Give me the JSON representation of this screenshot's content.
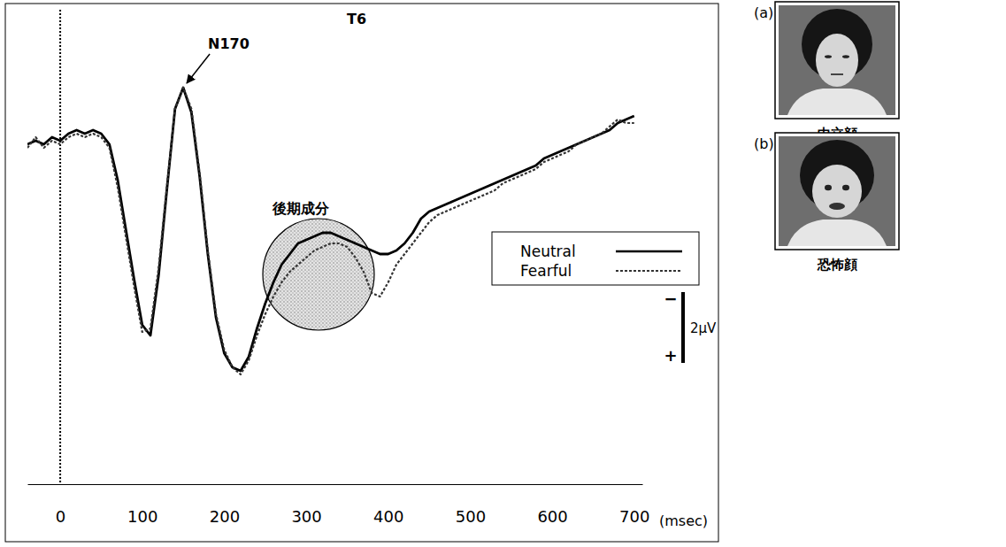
{
  "chart_data": {
    "type": "line",
    "title": "T6",
    "x_label": "(msec)",
    "x": [
      -40,
      -30,
      -20,
      -10,
      0,
      10,
      20,
      30,
      40,
      50,
      60,
      70,
      80,
      90,
      100,
      110,
      120,
      130,
      140,
      150,
      160,
      170,
      180,
      190,
      200,
      210,
      220,
      230,
      240,
      250,
      260,
      270,
      280,
      290,
      300,
      310,
      320,
      330,
      340,
      350,
      360,
      370,
      380,
      390,
      400,
      410,
      420,
      430,
      440,
      450,
      460,
      470,
      480,
      490,
      500,
      510,
      520,
      530,
      540,
      550,
      560,
      570,
      580,
      590,
      600,
      610,
      620,
      630,
      640,
      650,
      660,
      670,
      680,
      690,
      700
    ],
    "series": [
      {
        "name": "Neutral",
        "color": "#000000",
        "line_style": "solid",
        "values": [
          0.2,
          0.1,
          0.2,
          0.0,
          0.1,
          -0.1,
          -0.2,
          -0.1,
          -0.2,
          -0.1,
          0.2,
          1.2,
          2.6,
          4.0,
          5.3,
          5.6,
          3.9,
          1.5,
          -0.8,
          -1.4,
          -0.7,
          1.1,
          3.3,
          5.1,
          6.1,
          6.5,
          6.6,
          6.2,
          5.4,
          4.7,
          4.1,
          3.6,
          3.3,
          3.0,
          2.9,
          2.8,
          2.7,
          2.7,
          2.8,
          2.9,
          3.0,
          3.1,
          3.2,
          3.3,
          3.3,
          3.2,
          3.0,
          2.7,
          2.3,
          2.1,
          2.0,
          1.9,
          1.8,
          1.7,
          1.6,
          1.5,
          1.4,
          1.3,
          1.2,
          1.1,
          1.0,
          0.9,
          0.8,
          0.6,
          0.5,
          0.4,
          0.3,
          0.2,
          0.1,
          0.0,
          -0.1,
          -0.2,
          -0.4,
          -0.5,
          -0.6
        ]
      },
      {
        "name": "Fearful",
        "color": "#333333",
        "line_style": "dashed",
        "values": [
          0.3,
          0.0,
          0.3,
          0.1,
          0.2,
          0.0,
          -0.1,
          0.0,
          -0.1,
          0.0,
          0.3,
          1.4,
          2.8,
          4.2,
          5.5,
          5.4,
          3.7,
          1.4,
          -0.8,
          -1.4,
          -0.8,
          1.0,
          3.2,
          5.0,
          6.0,
          6.5,
          6.7,
          6.3,
          5.6,
          5.0,
          4.5,
          4.1,
          3.8,
          3.6,
          3.4,
          3.2,
          3.1,
          3.0,
          3.0,
          3.1,
          3.4,
          3.8,
          4.4,
          4.5,
          4.1,
          3.6,
          3.3,
          3.0,
          2.7,
          2.4,
          2.2,
          2.1,
          2.0,
          1.9,
          1.8,
          1.7,
          1.6,
          1.5,
          1.3,
          1.2,
          1.1,
          1.0,
          0.9,
          0.7,
          0.6,
          0.5,
          0.4,
          0.2,
          0.1,
          0.0,
          -0.1,
          -0.3,
          -0.5,
          -0.4,
          -0.4
        ]
      }
    ],
    "xlim": [
      -40,
      710
    ],
    "xticks": [
      0,
      100,
      200,
      300,
      400,
      500,
      600,
      700
    ],
    "ylim": [
      -3.6,
      9.8
    ],
    "yticks": [],
    "tick_labels": "x",
    "legend": "right",
    "annotations": [
      {
        "text": "N170"
      },
      {
        "text": "後期成分"
      }
    ],
    "scale_bar": {
      "value": 2,
      "label": "2μV",
      "top": "−",
      "bottom": "+"
    }
  },
  "images": [
    {
      "label": "(a)",
      "caption": "中立顔"
    },
    {
      "label": "(b)",
      "caption": "恐怖顔"
    }
  ]
}
